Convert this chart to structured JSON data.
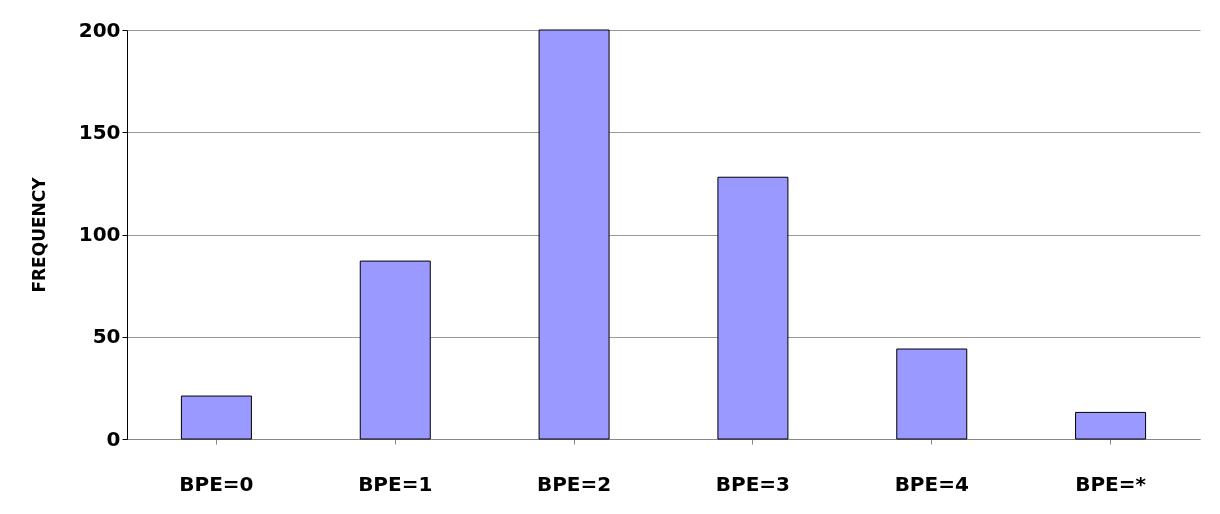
{
  "chart_data": {
    "type": "bar",
    "ylabel": "FREQUENCY",
    "categories": [
      "BPE=0",
      "BPE=1",
      "BPE=2",
      "BPE=3",
      "BPE=4",
      "BPE=*"
    ],
    "values": [
      21,
      87,
      200,
      128,
      44,
      13
    ],
    "color": "#9999ff",
    "ylim": [
      0,
      200
    ],
    "yticks": [
      0,
      50,
      100,
      150,
      200
    ],
    "grid": "y"
  }
}
